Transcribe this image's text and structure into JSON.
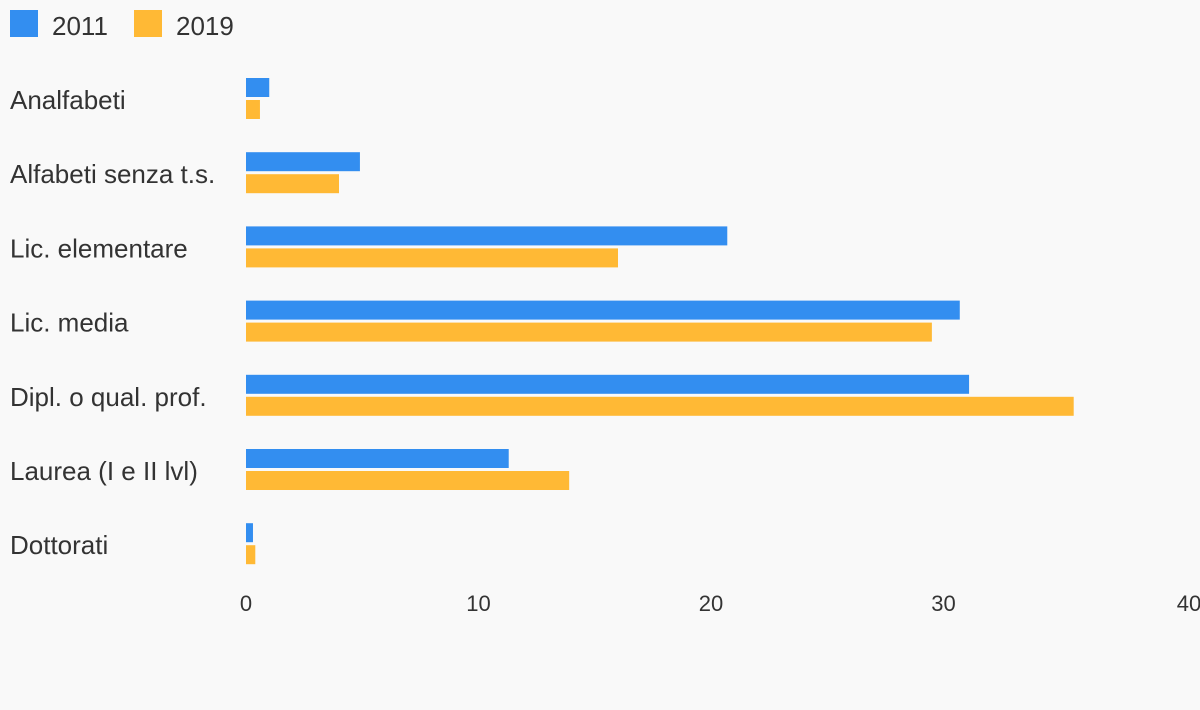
{
  "chart_data": {
    "type": "bar",
    "orientation": "horizontal",
    "categories": [
      "Analfabeti",
      "Alfabeti senza t.s.",
      "Lic. elementare",
      "Lic. media",
      "Dipl. o qual. prof.",
      "Laurea (I e II lvl)",
      "Dottorati"
    ],
    "series": [
      {
        "name": "2011",
        "color": "#338ef0",
        "values": [
          1.0,
          4.9,
          20.7,
          30.7,
          31.1,
          11.3,
          0.3
        ]
      },
      {
        "name": "2019",
        "color": "#ffb935",
        "values": [
          0.6,
          4.0,
          16.0,
          29.5,
          35.6,
          13.9,
          0.4
        ]
      }
    ],
    "xlim": [
      0,
      40
    ],
    "xticks": [
      0,
      10,
      20,
      30,
      40
    ],
    "legend_position": "top-left",
    "grid": false
  },
  "colors": {
    "background": "#f9f9f9",
    "text": "#333333"
  }
}
